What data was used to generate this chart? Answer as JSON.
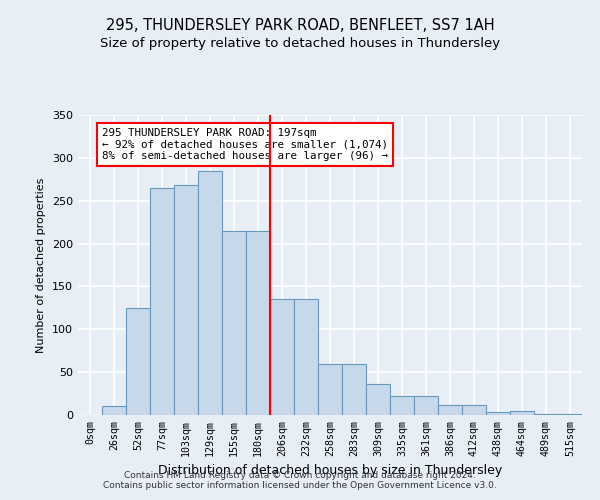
{
  "title1": "295, THUNDERSLEY PARK ROAD, BENFLEET, SS7 1AH",
  "title2": "Size of property relative to detached houses in Thundersley",
  "xlabel": "Distribution of detached houses by size in Thundersley",
  "ylabel": "Number of detached properties",
  "bar_labels": [
    "0sqm",
    "26sqm",
    "52sqm",
    "77sqm",
    "103sqm",
    "129sqm",
    "155sqm",
    "180sqm",
    "206sqm",
    "232sqm",
    "258sqm",
    "283sqm",
    "309sqm",
    "335sqm",
    "361sqm",
    "386sqm",
    "412sqm",
    "438sqm",
    "464sqm",
    "489sqm",
    "515sqm"
  ],
  "bar_values": [
    0,
    11,
    125,
    265,
    268,
    285,
    215,
    215,
    135,
    135,
    60,
    60,
    36,
    22,
    22,
    12,
    12,
    4,
    5,
    1,
    1
  ],
  "bar_color": "#c8d8eb",
  "bar_edge_color": "#6699bb",
  "annotation_title": "295 THUNDERSLEY PARK ROAD: 197sqm",
  "annotation_line1": "← 92% of detached houses are smaller (1,074)",
  "annotation_line2": "8% of semi-detached houses are larger (96) →",
  "vline_x": 8.0,
  "ylim": [
    0,
    350
  ],
  "yticks": [
    0,
    50,
    100,
    150,
    200,
    250,
    300,
    350
  ],
  "footer1": "Contains HM Land Registry data © Crown copyright and database right 2024.",
  "footer2": "Contains public sector information licensed under the Open Government Licence v3.0.",
  "bg_color": "#e8eef6",
  "grid_color": "#ffffff",
  "title1_fontsize": 10.5,
  "title2_fontsize": 9.5,
  "ylabel_fontsize": 8,
  "xlabel_fontsize": 9
}
